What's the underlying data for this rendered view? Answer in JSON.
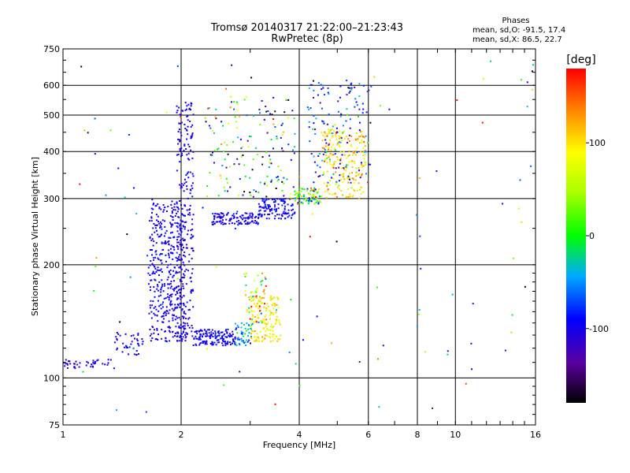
{
  "header": {
    "title": "Tromsø 20140317 21:22:00–21:23:43",
    "subtitle": "RwPretec (8p)",
    "phases_title": "Phases",
    "phases_o": "mean, sd,O: -91.5, 17.4",
    "phases_x": "mean, sd,X:  86.5, 22.7"
  },
  "colorbar": {
    "title": "[deg]",
    "ticks": [
      "100",
      "0",
      "-100"
    ],
    "tick_values": [
      100,
      0,
      -100
    ],
    "range": [
      -180,
      180
    ]
  },
  "chart_data": {
    "type": "scatter",
    "xlabel": "Frequency [MHz]",
    "ylabel": "Stationary phase Virtual Height [km]",
    "xscale": "log",
    "yscale": "log",
    "xlim": [
      1,
      16
    ],
    "ylim": [
      75,
      750
    ],
    "x_ticks": [
      1,
      2,
      4,
      6,
      8,
      10,
      16
    ],
    "x_tick_labels": [
      "1",
      "2",
      "4",
      "6",
      "8",
      "10",
      "16"
    ],
    "y_ticks": [
      75,
      100,
      200,
      300,
      400,
      500,
      600,
      750
    ],
    "y_tick_labels": [
      "75",
      "100",
      "200",
      "300",
      "400",
      "500",
      "600",
      "750"
    ],
    "grid": true,
    "color_variable": "phase [deg]",
    "color_range": [
      -180,
      180
    ],
    "point_groups": [
      {
        "x_range": [
          1.0,
          1.35
        ],
        "y_range": [
          106,
          112
        ],
        "phase_mean": -100,
        "phase_sd": 10,
        "count": 40
      },
      {
        "x_range": [
          1.35,
          1.6
        ],
        "y_range": [
          115,
          132
        ],
        "phase_mean": -100,
        "phase_sd": 10,
        "count": 40
      },
      {
        "x_range": [
          1.65,
          2.05
        ],
        "y_range": [
          125,
          300
        ],
        "phase_mean": -100,
        "phase_sd": 12,
        "count": 420
      },
      {
        "x_range": [
          1.95,
          2.15
        ],
        "y_range": [
          125,
          540
        ],
        "phase_mean": -102,
        "phase_sd": 10,
        "count": 260
      },
      {
        "x_range": [
          2.15,
          2.75
        ],
        "y_range": [
          122,
          135
        ],
        "phase_mean": -97,
        "phase_sd": 10,
        "count": 150
      },
      {
        "x_range": [
          2.75,
          3.05
        ],
        "y_range": [
          122,
          140
        ],
        "phase_mean": -50,
        "phase_sd": 25,
        "count": 50
      },
      {
        "x_range": [
          3.0,
          3.6
        ],
        "y_range": [
          125,
          165
        ],
        "phase_mean": 95,
        "phase_sd": 15,
        "count": 140
      },
      {
        "x_range": [
          2.9,
          3.3
        ],
        "y_range": [
          140,
          190
        ],
        "phase_mean": 60,
        "phase_sd": 60,
        "count": 50
      },
      {
        "x_range": [
          2.4,
          3.15
        ],
        "y_range": [
          255,
          275
        ],
        "phase_mean": -100,
        "phase_sd": 10,
        "count": 120
      },
      {
        "x_range": [
          3.15,
          3.9
        ],
        "y_range": [
          265,
          300
        ],
        "phase_mean": -95,
        "phase_sd": 12,
        "count": 120
      },
      {
        "x_range": [
          3.9,
          4.55
        ],
        "y_range": [
          290,
          320
        ],
        "phase_mean": 5,
        "phase_sd": 70,
        "count": 90
      },
      {
        "x_range": [
          4.55,
          5.9
        ],
        "y_range": [
          300,
          460
        ],
        "phase_mean": 100,
        "phase_sd": 25,
        "count": 220
      },
      {
        "x_range": [
          4.2,
          6.1
        ],
        "y_range": [
          330,
          620
        ],
        "phase_mean": -80,
        "phase_sd": 40,
        "count": 140
      },
      {
        "x_range": [
          2.3,
          3.9
        ],
        "y_range": [
          300,
          560
        ],
        "phase_mean": -40,
        "phase_sd": 90,
        "count": 160
      },
      {
        "x_range": [
          1.0,
          16.0
        ],
        "y_range": [
          78,
          700
        ],
        "phase_mean": 0,
        "phase_sd": 120,
        "count": 110
      }
    ]
  }
}
